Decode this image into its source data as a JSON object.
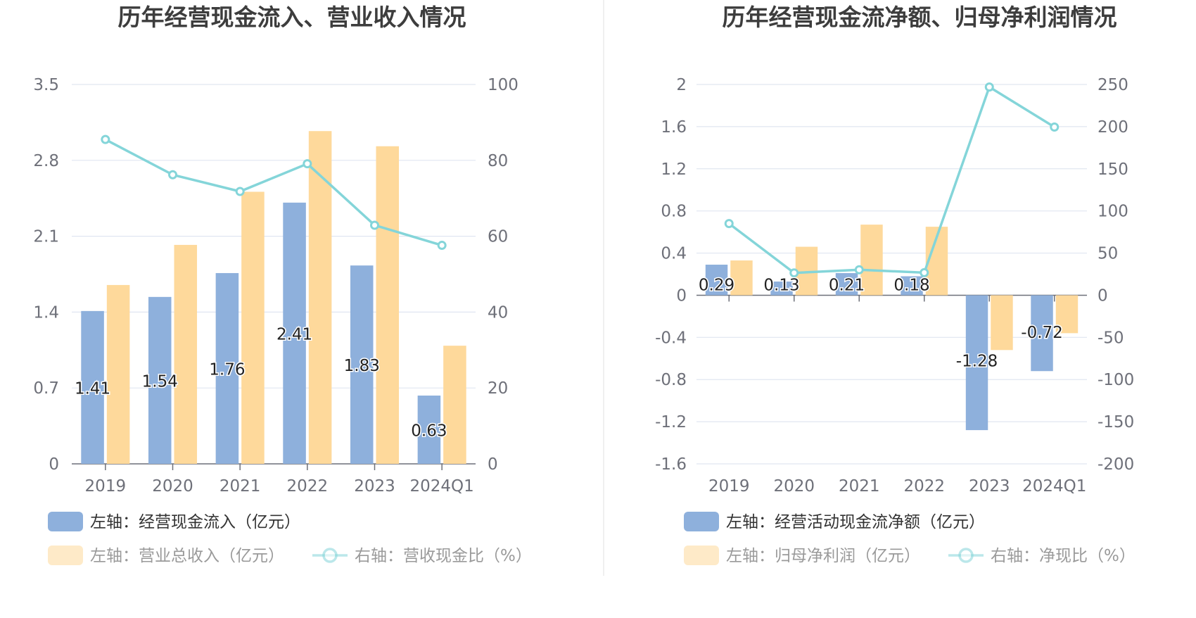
{
  "chart_data": [
    {
      "type": "bar",
      "title": "历年经营现金流入、营业收入情况",
      "categories": [
        "2019",
        "2020",
        "2021",
        "2022",
        "2023",
        "2024Q1"
      ],
      "left_axis": {
        "ticks": [
          "3.5",
          "2.8",
          "2.1",
          "1.4",
          "0.7",
          "0"
        ],
        "ylim": [
          0,
          3.5
        ]
      },
      "right_axis": {
        "ticks": [
          "100",
          "80",
          "60",
          "40",
          "20",
          "0"
        ],
        "ylim": [
          0,
          100
        ]
      },
      "grid": true,
      "series": [
        {
          "name": "左轴：经营现金流入（亿元）",
          "type": "bar",
          "axis": "left",
          "color": "#8eb0dc",
          "values": [
            1.41,
            1.54,
            1.76,
            2.41,
            1.83,
            0.63
          ],
          "labels": [
            "1.41",
            "1.54",
            "1.76",
            "2.41",
            "1.83",
            "0.63"
          ]
        },
        {
          "name": "左轴：营业总收入（亿元）",
          "type": "bar",
          "axis": "left",
          "color": "#fed99b",
          "values": [
            1.65,
            2.02,
            2.51,
            3.07,
            2.93,
            1.09
          ]
        },
        {
          "name": "右轴：营收现金比（%）",
          "type": "line",
          "axis": "right",
          "color": "#84d5d9",
          "values": [
            85.5,
            76.2,
            71.8,
            79.1,
            62.9,
            57.6
          ]
        }
      ],
      "legend": [
        "左轴：经营现金流入（亿元）",
        "左轴：营业总收入（亿元）",
        "右轴：营收现金比（%）"
      ],
      "legend_position": "bottom-left"
    },
    {
      "type": "bar",
      "title": "历年经营现金流净额、归母净利润情况",
      "categories": [
        "2019",
        "2020",
        "2021",
        "2022",
        "2023",
        "2024Q1"
      ],
      "left_axis": {
        "ticks": [
          "2",
          "1.6",
          "1.2",
          "0.8",
          "0.4",
          "0",
          "-0.4",
          "-0.8",
          "-1.2",
          "-1.6"
        ],
        "ylim": [
          -1.6,
          2
        ]
      },
      "right_axis": {
        "ticks": [
          "250",
          "200",
          "150",
          "100",
          "50",
          "0",
          "-50",
          "-100",
          "-150",
          "-200"
        ],
        "ylim": [
          -200,
          250
        ]
      },
      "grid": true,
      "series": [
        {
          "name": "左轴：经营活动现金流净额（亿元）",
          "type": "bar",
          "axis": "left",
          "color": "#8eb0dc",
          "values": [
            0.29,
            0.13,
            0.21,
            0.18,
            -1.28,
            -0.72
          ],
          "labels": [
            "0.29",
            "0.13",
            "0.21",
            "0.18",
            "-1.28",
            "-0.72"
          ]
        },
        {
          "name": "左轴：归母净利润（亿元）",
          "type": "bar",
          "axis": "left",
          "color": "#fed99b",
          "values": [
            0.33,
            0.46,
            0.67,
            0.65,
            -0.52,
            -0.36
          ]
        },
        {
          "name": "右轴：净现比（%）",
          "type": "line",
          "axis": "right",
          "color": "#84d5d9",
          "values": [
            85.0,
            26.5,
            30.2,
            26.8,
            247.0,
            199.5
          ]
        }
      ],
      "legend": [
        "左轴：经营活动现金流净额（亿元）",
        "左轴：归母净利润（亿元）",
        "右轴：净现比（%）"
      ],
      "legend_position": "bottom-left"
    }
  ]
}
